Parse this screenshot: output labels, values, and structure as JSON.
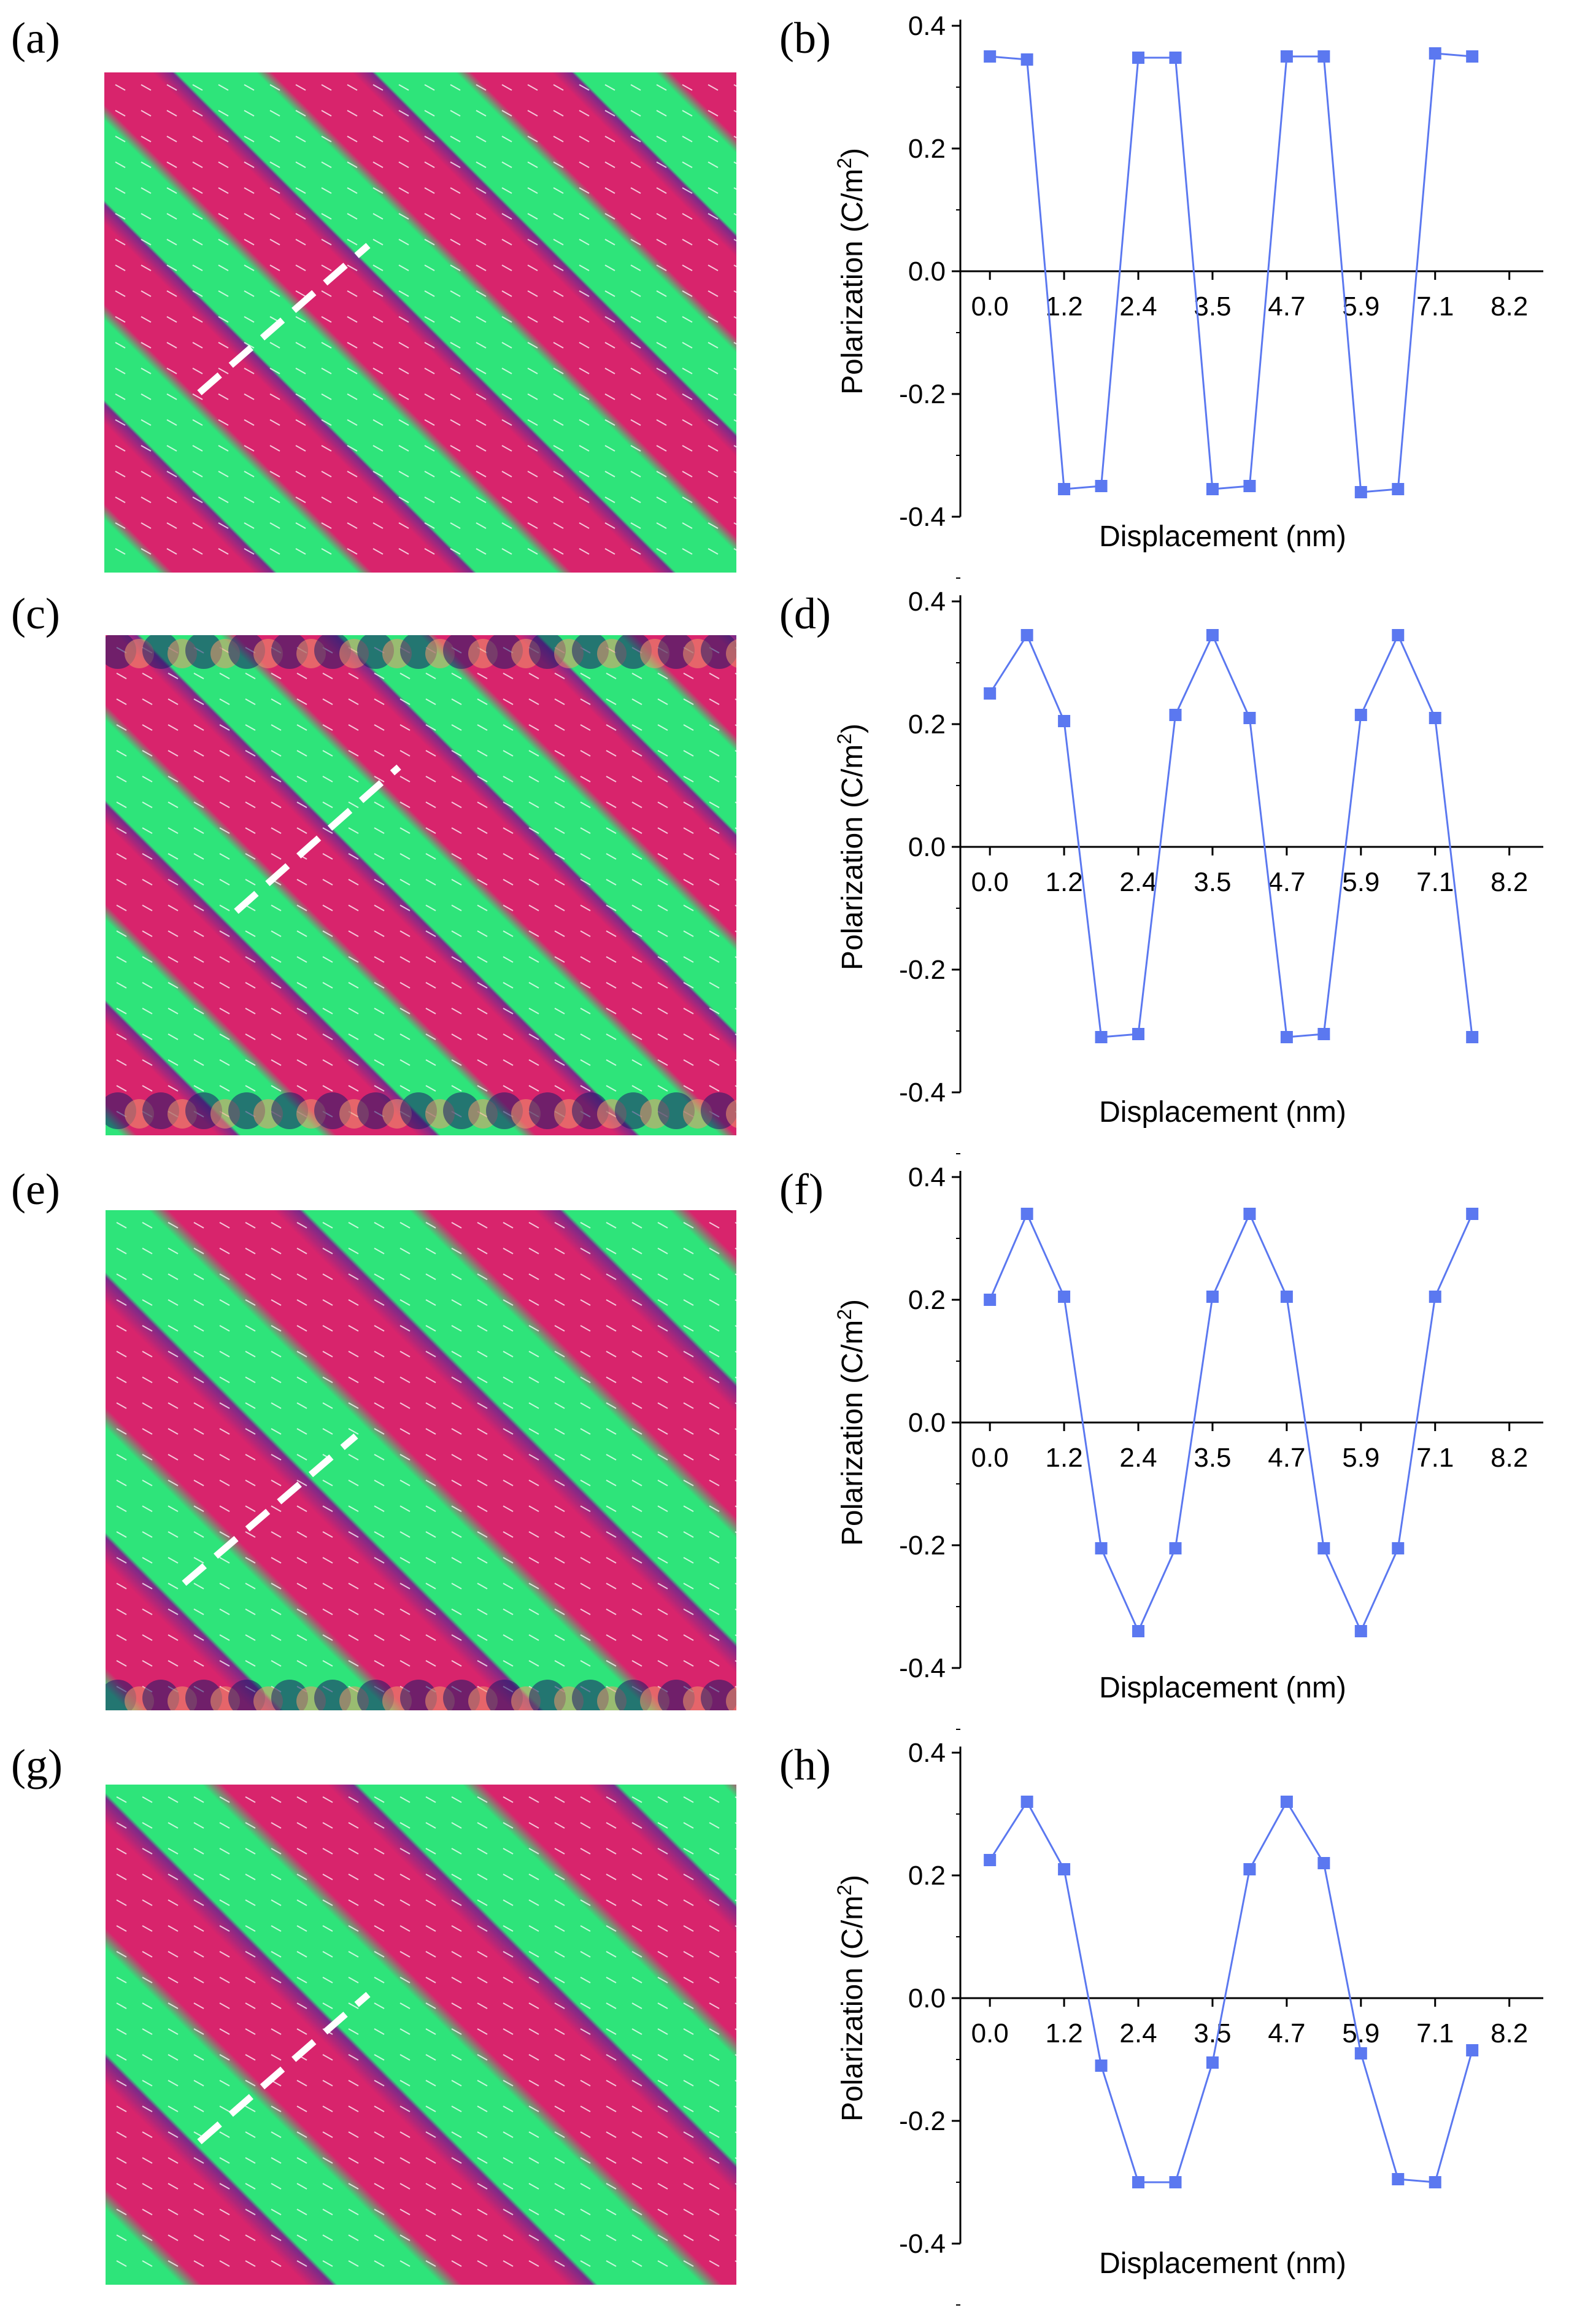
{
  "panel_letters": [
    "(a)",
    "(b)",
    "(c)",
    "(d)",
    "(e)",
    "(f)",
    "(g)",
    "(h)"
  ],
  "colors": {
    "series": "#5b78f0",
    "domain_pink": "#d8246c",
    "domain_green": "#2ee47a",
    "boundary_dark": "#7a2a8a",
    "dashed_line": "#ffffff"
  },
  "chart_data": [
    {
      "panel": "(b)",
      "type": "line",
      "xlabel": "Displacement (nm)",
      "ylabel": "Polarization (C/m",
      "ylabel_sup": "2",
      "ylabel_tail": ")",
      "x_tick_labels": [
        "0.0",
        "1.2",
        "2.4",
        "3.5",
        "4.7",
        "5.9",
        "7.1",
        "8.2"
      ],
      "y_tick_labels": [
        "0.4",
        "0.2",
        "0.0",
        "-0.2",
        "-0.4"
      ],
      "ylim": [
        -0.4,
        0.4
      ],
      "xlim": [
        -0.47,
        8.8
      ],
      "series": [
        {
          "x": [
            0.0,
            0.59,
            1.18,
            1.77,
            2.36,
            2.95,
            3.54,
            4.13,
            4.72,
            5.31,
            5.9,
            6.49,
            7.08,
            7.67
          ],
          "values": [
            0.35,
            0.345,
            -0.355,
            -0.35,
            0.348,
            0.348,
            -0.355,
            -0.35,
            0.35,
            0.35,
            -0.36,
            -0.355,
            0.355,
            0.35
          ]
        }
      ]
    },
    {
      "panel": "(d)",
      "type": "line",
      "xlabel": "Displacement (nm)",
      "ylabel": "Polarization (C/m",
      "ylabel_sup": "2",
      "ylabel_tail": ")",
      "x_tick_labels": [
        "0.0",
        "1.2",
        "2.4",
        "3.5",
        "4.7",
        "5.9",
        "7.1",
        "8.2"
      ],
      "y_tick_labels": [
        "0.4",
        "0.2",
        "0.0",
        "-0.2",
        "-0.4"
      ],
      "ylim": [
        -0.4,
        0.4
      ],
      "xlim": [
        -0.47,
        8.8
      ],
      "series": [
        {
          "x": [
            0.0,
            0.59,
            1.18,
            1.77,
            2.36,
            2.95,
            3.54,
            4.13,
            4.72,
            5.31,
            5.9,
            6.49,
            7.08,
            7.67
          ],
          "values": [
            0.25,
            0.345,
            0.205,
            -0.31,
            -0.305,
            0.215,
            0.345,
            0.21,
            -0.31,
            -0.305,
            0.215,
            0.345,
            0.21,
            -0.31
          ]
        }
      ]
    },
    {
      "panel": "(f)",
      "type": "line",
      "xlabel": "Displacement (nm)",
      "ylabel": "Polarization (C/m",
      "ylabel_sup": "2",
      "ylabel_tail": ")",
      "x_tick_labels": [
        "0.0",
        "1.2",
        "2.4",
        "3.5",
        "4.7",
        "5.9",
        "7.1",
        "8.2"
      ],
      "y_tick_labels": [
        "0.4",
        "0.2",
        "0.0",
        "-0.2",
        "-0.4"
      ],
      "ylim": [
        -0.4,
        0.4
      ],
      "xlim": [
        -0.47,
        8.8
      ],
      "series": [
        {
          "x": [
            0.0,
            0.59,
            1.18,
            1.77,
            2.36,
            2.95,
            3.54,
            4.13,
            4.72,
            5.31,
            5.9,
            6.49,
            7.08,
            7.67
          ],
          "values": [
            0.2,
            0.34,
            0.205,
            -0.205,
            -0.34,
            -0.205,
            0.205,
            0.34,
            0.205,
            -0.205,
            -0.34,
            -0.205,
            0.205,
            0.34
          ]
        }
      ]
    },
    {
      "panel": "(h)",
      "type": "line",
      "xlabel": "Displacement (nm)",
      "ylabel": "Polarization (C/m",
      "ylabel_sup": "2",
      "ylabel_tail": ")",
      "x_tick_labels": [
        "0.0",
        "1.2",
        "2.4",
        "3.5",
        "4.7",
        "5.9",
        "7.1",
        "8.2"
      ],
      "y_tick_labels": [
        "0.4",
        "0.2",
        "0.0",
        "-0.2",
        "-0.4"
      ],
      "ylim": [
        -0.4,
        0.4
      ],
      "xlim": [
        -0.47,
        8.8
      ],
      "series": [
        {
          "x": [
            0.0,
            0.59,
            1.18,
            1.77,
            2.36,
            2.95,
            3.54,
            4.13,
            4.72,
            5.31,
            5.9,
            6.49,
            7.08,
            7.67
          ],
          "values": [
            0.225,
            0.32,
            0.21,
            -0.11,
            -0.3,
            -0.3,
            -0.105,
            0.21,
            0.32,
            0.22,
            -0.09,
            -0.295,
            -0.3,
            -0.085
          ]
        }
      ]
    }
  ]
}
